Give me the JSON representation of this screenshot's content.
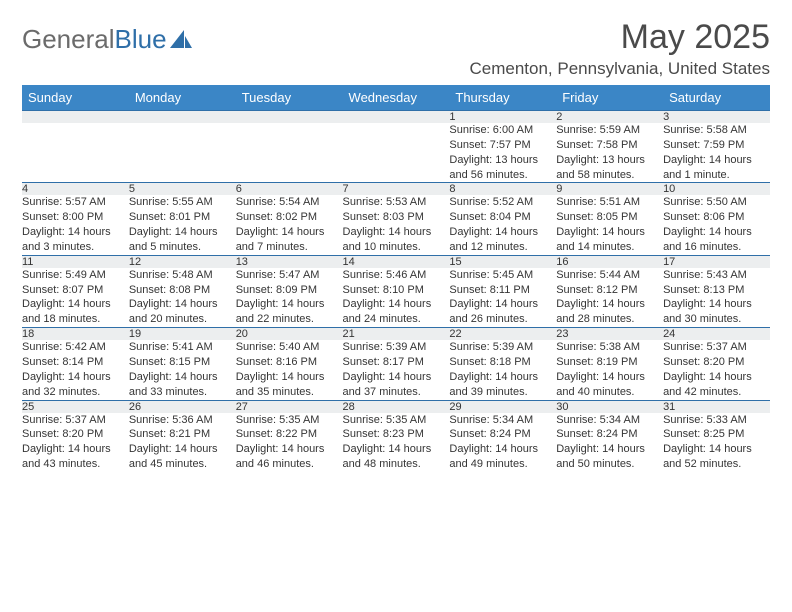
{
  "logo": {
    "text_gray": "General",
    "text_blue": "Blue"
  },
  "title": "May 2025",
  "location": "Cementon, Pennsylvania, United States",
  "colors": {
    "header_bg": "#3b86c6",
    "header_text": "#ffffff",
    "row_border": "#2f6fa8",
    "daynum_bg": "#eceeef",
    "text": "#353535",
    "logo_gray": "#6b6b6b",
    "logo_blue": "#2f6fa8"
  },
  "weekdays": [
    "Sunday",
    "Monday",
    "Tuesday",
    "Wednesday",
    "Thursday",
    "Friday",
    "Saturday"
  ],
  "weeks": [
    {
      "nums": [
        "",
        "",
        "",
        "",
        "1",
        "2",
        "3"
      ],
      "cells": [
        null,
        null,
        null,
        null,
        {
          "sunrise": "Sunrise: 6:00 AM",
          "sunset": "Sunset: 7:57 PM",
          "daylight1": "Daylight: 13 hours",
          "daylight2": "and 56 minutes."
        },
        {
          "sunrise": "Sunrise: 5:59 AM",
          "sunset": "Sunset: 7:58 PM",
          "daylight1": "Daylight: 13 hours",
          "daylight2": "and 58 minutes."
        },
        {
          "sunrise": "Sunrise: 5:58 AM",
          "sunset": "Sunset: 7:59 PM",
          "daylight1": "Daylight: 14 hours",
          "daylight2": "and 1 minute."
        }
      ]
    },
    {
      "nums": [
        "4",
        "5",
        "6",
        "7",
        "8",
        "9",
        "10"
      ],
      "cells": [
        {
          "sunrise": "Sunrise: 5:57 AM",
          "sunset": "Sunset: 8:00 PM",
          "daylight1": "Daylight: 14 hours",
          "daylight2": "and 3 minutes."
        },
        {
          "sunrise": "Sunrise: 5:55 AM",
          "sunset": "Sunset: 8:01 PM",
          "daylight1": "Daylight: 14 hours",
          "daylight2": "and 5 minutes."
        },
        {
          "sunrise": "Sunrise: 5:54 AM",
          "sunset": "Sunset: 8:02 PM",
          "daylight1": "Daylight: 14 hours",
          "daylight2": "and 7 minutes."
        },
        {
          "sunrise": "Sunrise: 5:53 AM",
          "sunset": "Sunset: 8:03 PM",
          "daylight1": "Daylight: 14 hours",
          "daylight2": "and 10 minutes."
        },
        {
          "sunrise": "Sunrise: 5:52 AM",
          "sunset": "Sunset: 8:04 PM",
          "daylight1": "Daylight: 14 hours",
          "daylight2": "and 12 minutes."
        },
        {
          "sunrise": "Sunrise: 5:51 AM",
          "sunset": "Sunset: 8:05 PM",
          "daylight1": "Daylight: 14 hours",
          "daylight2": "and 14 minutes."
        },
        {
          "sunrise": "Sunrise: 5:50 AM",
          "sunset": "Sunset: 8:06 PM",
          "daylight1": "Daylight: 14 hours",
          "daylight2": "and 16 minutes."
        }
      ]
    },
    {
      "nums": [
        "11",
        "12",
        "13",
        "14",
        "15",
        "16",
        "17"
      ],
      "cells": [
        {
          "sunrise": "Sunrise: 5:49 AM",
          "sunset": "Sunset: 8:07 PM",
          "daylight1": "Daylight: 14 hours",
          "daylight2": "and 18 minutes."
        },
        {
          "sunrise": "Sunrise: 5:48 AM",
          "sunset": "Sunset: 8:08 PM",
          "daylight1": "Daylight: 14 hours",
          "daylight2": "and 20 minutes."
        },
        {
          "sunrise": "Sunrise: 5:47 AM",
          "sunset": "Sunset: 8:09 PM",
          "daylight1": "Daylight: 14 hours",
          "daylight2": "and 22 minutes."
        },
        {
          "sunrise": "Sunrise: 5:46 AM",
          "sunset": "Sunset: 8:10 PM",
          "daylight1": "Daylight: 14 hours",
          "daylight2": "and 24 minutes."
        },
        {
          "sunrise": "Sunrise: 5:45 AM",
          "sunset": "Sunset: 8:11 PM",
          "daylight1": "Daylight: 14 hours",
          "daylight2": "and 26 minutes."
        },
        {
          "sunrise": "Sunrise: 5:44 AM",
          "sunset": "Sunset: 8:12 PM",
          "daylight1": "Daylight: 14 hours",
          "daylight2": "and 28 minutes."
        },
        {
          "sunrise": "Sunrise: 5:43 AM",
          "sunset": "Sunset: 8:13 PM",
          "daylight1": "Daylight: 14 hours",
          "daylight2": "and 30 minutes."
        }
      ]
    },
    {
      "nums": [
        "18",
        "19",
        "20",
        "21",
        "22",
        "23",
        "24"
      ],
      "cells": [
        {
          "sunrise": "Sunrise: 5:42 AM",
          "sunset": "Sunset: 8:14 PM",
          "daylight1": "Daylight: 14 hours",
          "daylight2": "and 32 minutes."
        },
        {
          "sunrise": "Sunrise: 5:41 AM",
          "sunset": "Sunset: 8:15 PM",
          "daylight1": "Daylight: 14 hours",
          "daylight2": "and 33 minutes."
        },
        {
          "sunrise": "Sunrise: 5:40 AM",
          "sunset": "Sunset: 8:16 PM",
          "daylight1": "Daylight: 14 hours",
          "daylight2": "and 35 minutes."
        },
        {
          "sunrise": "Sunrise: 5:39 AM",
          "sunset": "Sunset: 8:17 PM",
          "daylight1": "Daylight: 14 hours",
          "daylight2": "and 37 minutes."
        },
        {
          "sunrise": "Sunrise: 5:39 AM",
          "sunset": "Sunset: 8:18 PM",
          "daylight1": "Daylight: 14 hours",
          "daylight2": "and 39 minutes."
        },
        {
          "sunrise": "Sunrise: 5:38 AM",
          "sunset": "Sunset: 8:19 PM",
          "daylight1": "Daylight: 14 hours",
          "daylight2": "and 40 minutes."
        },
        {
          "sunrise": "Sunrise: 5:37 AM",
          "sunset": "Sunset: 8:20 PM",
          "daylight1": "Daylight: 14 hours",
          "daylight2": "and 42 minutes."
        }
      ]
    },
    {
      "nums": [
        "25",
        "26",
        "27",
        "28",
        "29",
        "30",
        "31"
      ],
      "cells": [
        {
          "sunrise": "Sunrise: 5:37 AM",
          "sunset": "Sunset: 8:20 PM",
          "daylight1": "Daylight: 14 hours",
          "daylight2": "and 43 minutes."
        },
        {
          "sunrise": "Sunrise: 5:36 AM",
          "sunset": "Sunset: 8:21 PM",
          "daylight1": "Daylight: 14 hours",
          "daylight2": "and 45 minutes."
        },
        {
          "sunrise": "Sunrise: 5:35 AM",
          "sunset": "Sunset: 8:22 PM",
          "daylight1": "Daylight: 14 hours",
          "daylight2": "and 46 minutes."
        },
        {
          "sunrise": "Sunrise: 5:35 AM",
          "sunset": "Sunset: 8:23 PM",
          "daylight1": "Daylight: 14 hours",
          "daylight2": "and 48 minutes."
        },
        {
          "sunrise": "Sunrise: 5:34 AM",
          "sunset": "Sunset: 8:24 PM",
          "daylight1": "Daylight: 14 hours",
          "daylight2": "and 49 minutes."
        },
        {
          "sunrise": "Sunrise: 5:34 AM",
          "sunset": "Sunset: 8:24 PM",
          "daylight1": "Daylight: 14 hours",
          "daylight2": "and 50 minutes."
        },
        {
          "sunrise": "Sunrise: 5:33 AM",
          "sunset": "Sunset: 8:25 PM",
          "daylight1": "Daylight: 14 hours",
          "daylight2": "and 52 minutes."
        }
      ]
    }
  ]
}
